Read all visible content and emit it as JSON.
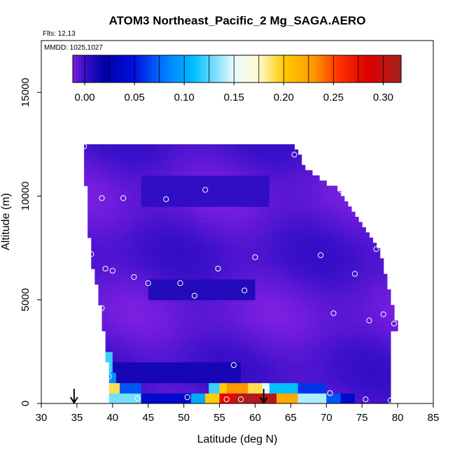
{
  "chart_data": {
    "type": "heatmap",
    "title": "ATOM3 Northeast_Pacific_2 Mg_SAGA.AERO",
    "flights_label": "Flts: 12,13",
    "mmdd_label": "MMDD: 1025,1027",
    "xlabel": "Latitude (deg N)",
    "ylabel": "Altitude (m)",
    "xlim": [
      30,
      85
    ],
    "ylim": [
      0,
      17500
    ],
    "x_ticks": [
      "30",
      "35",
      "40",
      "45",
      "50",
      "55",
      "60",
      "65",
      "70",
      "75",
      "80",
      "85"
    ],
    "y_ticks": [
      "0",
      "5000",
      "10000",
      "15000"
    ],
    "colorbar": {
      "range": [
        -0.012,
        0.318
      ],
      "ticks": [
        "0.00",
        "0.05",
        "0.10",
        "0.15",
        "0.20",
        "0.25",
        "0.30"
      ],
      "stops": [
        {
          "v": -0.012,
          "c": "#7b1fe0"
        },
        {
          "v": 0.0,
          "c": "#3a10c8"
        },
        {
          "v": 0.02,
          "c": "#0000a8"
        },
        {
          "v": 0.05,
          "c": "#0010e0"
        },
        {
          "v": 0.08,
          "c": "#0078ff"
        },
        {
          "v": 0.11,
          "c": "#00c0ff"
        },
        {
          "v": 0.15,
          "c": "#e8fbff"
        },
        {
          "v": 0.175,
          "c": "#fffad0"
        },
        {
          "v": 0.2,
          "c": "#ffcc00"
        },
        {
          "v": 0.23,
          "c": "#ff9900"
        },
        {
          "v": 0.255,
          "c": "#ff3300"
        },
        {
          "v": 0.285,
          "c": "#dd0000"
        },
        {
          "v": 0.318,
          "c": "#a52222"
        }
      ]
    },
    "field_envelope": [
      [
        36,
        12400
      ],
      [
        65.5,
        12400
      ],
      [
        67,
        11400
      ],
      [
        72,
        10200
      ],
      [
        75,
        8600
      ],
      [
        77.5,
        7400
      ],
      [
        79,
        5200
      ],
      [
        80,
        3700
      ],
      [
        79,
        3300
      ],
      [
        79,
        0
      ],
      [
        39.5,
        0
      ],
      [
        39.5,
        1100
      ],
      [
        38.5,
        4300
      ],
      [
        37,
        7000
      ],
      [
        36.5,
        9000
      ],
      [
        36,
        11800
      ]
    ],
    "field_base_value": -0.005,
    "field_anomalies": [
      {
        "lat_range": [
          45,
          60
        ],
        "alt_range": [
          5000,
          6100
        ],
        "value": 0.008
      },
      {
        "lat_range": [
          40,
          58
        ],
        "alt_range": [
          1000,
          1900
        ],
        "value": 0.012
      },
      {
        "lat_range": [
          44,
          62
        ],
        "alt_range": [
          9500,
          11000
        ],
        "value": 0.003
      },
      {
        "lat_range": [
          39,
          40
        ],
        "alt_range": [
          1600,
          2400
        ],
        "value": 0.12
      },
      {
        "lat_range": [
          39.5,
          40.5
        ],
        "alt_range": [
          1000,
          1600
        ],
        "value": 0.09
      },
      {
        "lat_range": [
          39.5,
          44
        ],
        "alt_range": [
          0,
          500
        ],
        "value": 0.13
      },
      {
        "lat_range": [
          39.5,
          41
        ],
        "alt_range": [
          500,
          900
        ],
        "value": 0.19
      },
      {
        "lat_range": [
          41,
          44
        ],
        "alt_range": [
          500,
          900
        ],
        "value": 0.07
      },
      {
        "lat_range": [
          44,
          51
        ],
        "alt_range": [
          0,
          500
        ],
        "value": 0.04
      },
      {
        "lat_range": [
          51,
          53
        ],
        "alt_range": [
          0,
          500
        ],
        "value": 0.1
      },
      {
        "lat_range": [
          53,
          55
        ],
        "alt_range": [
          0,
          500
        ],
        "value": 0.2
      },
      {
        "lat_range": [
          55,
          57
        ],
        "alt_range": [
          0,
          500
        ],
        "value": 0.28
      },
      {
        "lat_range": [
          57,
          63
        ],
        "alt_range": [
          0,
          500
        ],
        "value": 0.31
      },
      {
        "lat_range": [
          63,
          66
        ],
        "alt_range": [
          0,
          500
        ],
        "value": 0.22
      },
      {
        "lat_range": [
          66,
          70
        ],
        "alt_range": [
          0,
          500
        ],
        "value": 0.14
      },
      {
        "lat_range": [
          70,
          72
        ],
        "alt_range": [
          0,
          500
        ],
        "value": 0.07
      },
      {
        "lat_range": [
          72,
          74
        ],
        "alt_range": [
          0,
          500
        ],
        "value": 0.04
      },
      {
        "lat_range": [
          53.5,
          55
        ],
        "alt_range": [
          500,
          900
        ],
        "value": 0.12
      },
      {
        "lat_range": [
          55,
          56
        ],
        "alt_range": [
          500,
          900
        ],
        "value": 0.2
      },
      {
        "lat_range": [
          56,
          59
        ],
        "alt_range": [
          500,
          900
        ],
        "value": 0.23
      },
      {
        "lat_range": [
          59,
          61
        ],
        "alt_range": [
          500,
          900
        ],
        "value": 0.19
      },
      {
        "lat_range": [
          61,
          62
        ],
        "alt_range": [
          500,
          900
        ],
        "value": 0.15
      },
      {
        "lat_range": [
          62,
          66
        ],
        "alt_range": [
          500,
          900
        ],
        "value": 0.11
      },
      {
        "lat_range": [
          66,
          70
        ],
        "alt_range": [
          500,
          900
        ],
        "value": 0.06
      }
    ],
    "flight_path_points": [
      {
        "lat": 36,
        "alt": 12400
      },
      {
        "lat": 65.5,
        "alt": 12000
      },
      {
        "lat": 38.5,
        "alt": 9900
      },
      {
        "lat": 41.5,
        "alt": 9900
      },
      {
        "lat": 47.5,
        "alt": 9850
      },
      {
        "lat": 53,
        "alt": 10300
      },
      {
        "lat": 72,
        "alt": 10300
      },
      {
        "lat": 37,
        "alt": 7200
      },
      {
        "lat": 39,
        "alt": 6500
      },
      {
        "lat": 40,
        "alt": 6400
      },
      {
        "lat": 43,
        "alt": 6100
      },
      {
        "lat": 45,
        "alt": 5800
      },
      {
        "lat": 49.5,
        "alt": 5800
      },
      {
        "lat": 51.5,
        "alt": 5200
      },
      {
        "lat": 54.8,
        "alt": 6500
      },
      {
        "lat": 58.5,
        "alt": 5450
      },
      {
        "lat": 60,
        "alt": 7050
      },
      {
        "lat": 69.2,
        "alt": 7150
      },
      {
        "lat": 74,
        "alt": 6250
      },
      {
        "lat": 38.5,
        "alt": 4600
      },
      {
        "lat": 71,
        "alt": 4350
      },
      {
        "lat": 76,
        "alt": 4000
      },
      {
        "lat": 78,
        "alt": 4300
      },
      {
        "lat": 79.5,
        "alt": 3850
      },
      {
        "lat": 77,
        "alt": 7450
      },
      {
        "lat": 57,
        "alt": 1850
      },
      {
        "lat": 39.5,
        "alt": 1300
      },
      {
        "lat": 43.5,
        "alt": 250
      },
      {
        "lat": 50.5,
        "alt": 300
      },
      {
        "lat": 56,
        "alt": 200
      },
      {
        "lat": 58,
        "alt": 200
      },
      {
        "lat": 70.5,
        "alt": 500
      },
      {
        "lat": 75.5,
        "alt": 200
      },
      {
        "lat": 79,
        "alt": 150
      }
    ],
    "arrow_markers": [
      {
        "lat": 34.6,
        "direction": "down"
      },
      {
        "lat": 61.2,
        "direction": "down"
      }
    ]
  }
}
